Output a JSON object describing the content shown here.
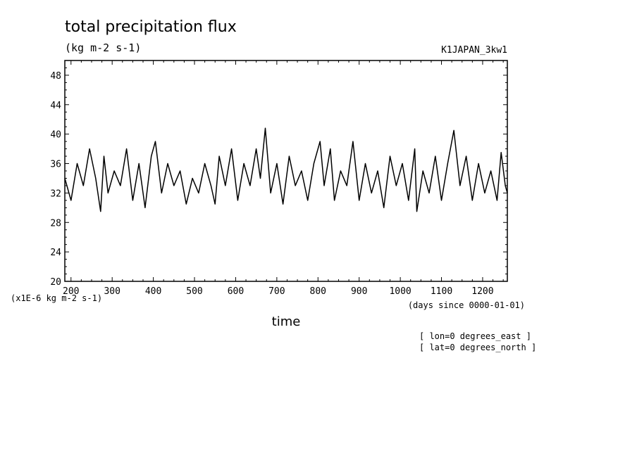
{
  "chart_data": {
    "type": "line",
    "title": "total precipitation flux",
    "units": "(kg m-2 s-1)",
    "run_id": "K1JAPAN_3kw1",
    "xlabel": "time",
    "x_units": "(days since 0000-01-01)",
    "y_scale_label": "(x1E-6 kg m-2 s-1)",
    "annotations": [
      "[ lon=0 degrees_east ]",
      "[ lat=0 degrees_north ]"
    ],
    "xlim": [
      185,
      1260
    ],
    "ylim": [
      20,
      50
    ],
    "x_ticks": [
      200,
      300,
      400,
      500,
      600,
      700,
      800,
      900,
      1000,
      1100,
      1200
    ],
    "x_tick_labels": [
      "200",
      "300",
      "400",
      "500",
      "600",
      "700",
      "800",
      "900",
      "1000",
      "1100",
      "1200"
    ],
    "y_ticks": [
      20,
      24,
      28,
      32,
      36,
      40,
      44,
      48
    ],
    "y_tick_labels": [
      "20",
      "24",
      "28",
      "32",
      "36",
      "40",
      "44",
      "48"
    ],
    "series": [
      {
        "x": [
          185,
          200,
          215,
          230,
          245,
          260,
          272,
          280,
          290,
          305,
          320,
          335,
          350,
          365,
          380,
          395,
          405,
          420,
          435,
          450,
          465,
          480,
          495,
          510,
          525,
          540,
          550,
          560,
          575,
          590,
          605,
          620,
          635,
          650,
          660,
          672,
          685,
          700,
          715,
          730,
          745,
          760,
          775,
          790,
          805,
          815,
          830,
          840,
          855,
          870,
          885,
          900,
          915,
          930,
          945,
          960,
          975,
          990,
          1005,
          1020,
          1035,
          1040,
          1055,
          1070,
          1085,
          1100,
          1115,
          1130,
          1145,
          1160,
          1175,
          1190,
          1205,
          1220,
          1235,
          1245,
          1255,
          1260
        ],
        "y": [
          34,
          31,
          36,
          33,
          38,
          34,
          29.5,
          37,
          32,
          35,
          33,
          38,
          31,
          36,
          30,
          37,
          39,
          32,
          36,
          33,
          35,
          30.5,
          34,
          32,
          36,
          33,
          30.5,
          37,
          33,
          38,
          31,
          36,
          33,
          38,
          34,
          40.8,
          32,
          36,
          30.5,
          37,
          33,
          35,
          31,
          36,
          39,
          33,
          38,
          31,
          35,
          33,
          39,
          31,
          36,
          32,
          35,
          30,
          37,
          33,
          36,
          31,
          38,
          29.5,
          35,
          32,
          37,
          31,
          36,
          40.5,
          33,
          37,
          31,
          36,
          32,
          35,
          31,
          37.5,
          33,
          32
        ]
      }
    ]
  }
}
